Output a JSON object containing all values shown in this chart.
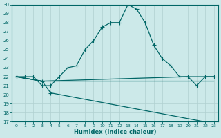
{
  "xlabel": "Humidex (Indice chaleur)",
  "bg_color": "#cce9e9",
  "grid_color": "#b0d0d0",
  "line_color": "#006666",
  "spine_color": "#006666",
  "xlim": [
    -0.5,
    23.5
  ],
  "ylim": [
    17,
    30
  ],
  "xticks": [
    0,
    1,
    2,
    3,
    4,
    5,
    6,
    7,
    8,
    9,
    10,
    11,
    12,
    13,
    14,
    15,
    16,
    17,
    18,
    19,
    20,
    21,
    22,
    23
  ],
  "yticks": [
    17,
    18,
    19,
    20,
    21,
    22,
    23,
    24,
    25,
    26,
    27,
    28,
    29,
    30
  ],
  "line1_x": [
    0,
    1,
    2,
    3,
    4,
    5,
    6,
    7,
    8,
    9,
    10,
    11,
    12,
    13,
    14,
    15,
    16,
    17,
    18,
    19,
    20,
    21,
    22,
    23
  ],
  "line1_y": [
    22,
    22,
    22,
    21,
    21,
    22,
    23,
    23.2,
    25,
    26,
    27.5,
    28,
    28,
    30,
    29.5,
    28,
    25.5,
    24,
    23.2,
    22,
    22,
    21,
    22,
    22
  ],
  "line2_x": [
    0,
    3,
    20,
    23
  ],
  "line2_y": [
    22,
    21.5,
    22,
    22
  ],
  "line3_x": [
    0,
    3,
    23
  ],
  "line3_y": [
    22,
    21.5,
    21.5
  ],
  "line4_x": [
    0,
    3,
    4,
    23
  ],
  "line4_y": [
    22,
    21.5,
    20.2,
    16.8
  ]
}
